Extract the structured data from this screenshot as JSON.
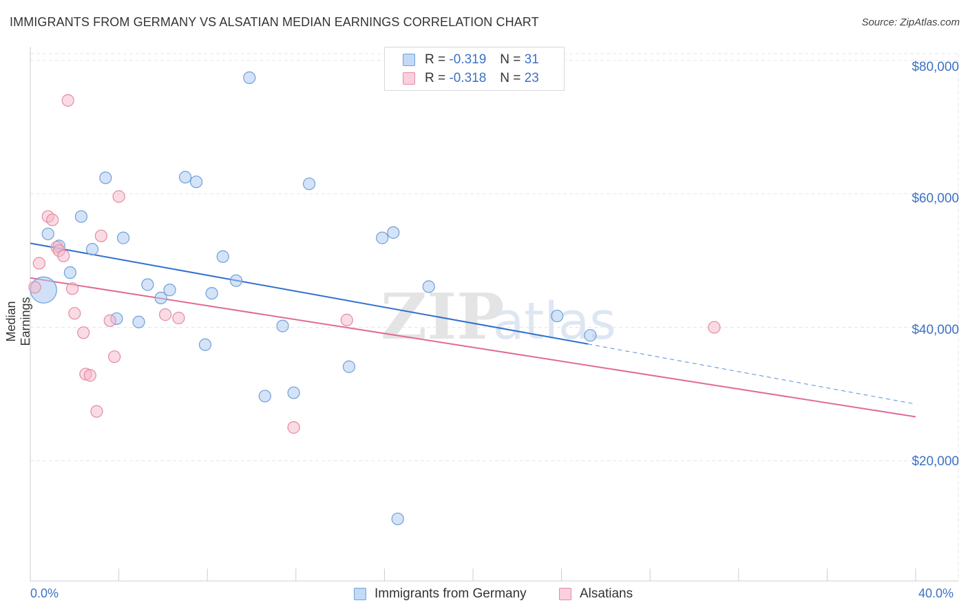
{
  "header": {
    "title": "IMMIGRANTS FROM GERMANY VS ALSATIAN MEDIAN EARNINGS CORRELATION CHART",
    "source": "Source: ZipAtlas.com"
  },
  "legend": {
    "rows": [
      {
        "r_label": "R = ",
        "r_value": "-0.319",
        "n_label": "N = ",
        "n_value": "31",
        "color": "#a9c8f0"
      },
      {
        "r_label": "R = ",
        "r_value": "-0.318",
        "n_label": "N = ",
        "n_value": "23",
        "color": "#f5b8c8"
      }
    ]
  },
  "watermark": {
    "zip": "ZIP",
    "atlas": "atlas"
  },
  "chart_data": {
    "type": "scatter",
    "title": "IMMIGRANTS FROM GERMANY VS ALSATIAN MEDIAN EARNINGS CORRELATION CHART",
    "xlabel": "",
    "ylabel": "Median Earnings",
    "xlim": [
      0,
      40
    ],
    "ylim": [
      2000,
      82000
    ],
    "x_tick_labels": [
      "0.0%",
      "40.0%"
    ],
    "y_ticks": [
      20000,
      40000,
      60000,
      80000
    ],
    "y_tick_labels": [
      "$20,000",
      "$40,000",
      "$60,000",
      "$80,000"
    ],
    "grid": true,
    "legend_position": "top-center",
    "series": [
      {
        "name": "Immigrants from Germany",
        "color": "#a9c8f0",
        "stroke": "#6f9fd8",
        "line_color": "#2f6fd0",
        "points": [
          [
            0.6,
            45.6,
            1
          ],
          [
            0.8,
            54.0,
            0
          ],
          [
            1.3,
            52.2,
            0
          ],
          [
            1.8,
            48.2,
            0
          ],
          [
            2.3,
            56.6,
            0
          ],
          [
            2.8,
            51.7,
            0
          ],
          [
            3.4,
            62.4,
            0
          ],
          [
            3.9,
            41.3,
            0
          ],
          [
            4.2,
            53.4,
            0
          ],
          [
            4.9,
            40.8,
            0
          ],
          [
            5.3,
            46.4,
            0
          ],
          [
            5.9,
            44.4,
            0
          ],
          [
            6.3,
            45.6,
            0
          ],
          [
            7.0,
            62.5,
            0
          ],
          [
            7.5,
            61.8,
            0
          ],
          [
            7.9,
            37.4,
            0
          ],
          [
            8.2,
            45.1,
            0
          ],
          [
            8.7,
            50.6,
            0
          ],
          [
            9.3,
            47.0,
            0
          ],
          [
            9.9,
            77.4,
            0
          ],
          [
            10.6,
            29.7,
            0
          ],
          [
            11.4,
            40.2,
            0
          ],
          [
            11.9,
            30.2,
            0
          ],
          [
            12.6,
            61.5,
            0
          ],
          [
            14.4,
            34.1,
            0
          ],
          [
            15.9,
            53.4,
            0
          ],
          [
            16.4,
            54.2,
            0
          ],
          [
            16.6,
            11.3,
            0
          ],
          [
            18.0,
            46.1,
            0
          ],
          [
            23.8,
            41.7,
            0
          ],
          [
            25.3,
            38.8,
            0
          ]
        ],
        "trend": {
          "x0": 0,
          "y0": 52.6,
          "x1": 25.2,
          "y1": 37.5,
          "dash_to_x": 40,
          "dash_to_y": 28.5
        }
      },
      {
        "name": "Alsatians",
        "color": "#f5b8c8",
        "stroke": "#e38aa4",
        "line_color": "#e06a94",
        "points": [
          [
            0.2,
            46.0,
            0
          ],
          [
            0.4,
            49.6,
            0
          ],
          [
            0.8,
            56.6,
            0
          ],
          [
            1.0,
            56.1,
            0
          ],
          [
            1.2,
            52.0,
            0
          ],
          [
            1.3,
            51.5,
            0
          ],
          [
            1.5,
            50.7,
            0
          ],
          [
            1.7,
            74.0,
            0
          ],
          [
            1.9,
            45.8,
            0
          ],
          [
            2.0,
            42.1,
            0
          ],
          [
            2.4,
            39.2,
            0
          ],
          [
            2.5,
            33.0,
            0
          ],
          [
            2.7,
            32.8,
            0
          ],
          [
            3.0,
            27.4,
            0
          ],
          [
            3.2,
            53.7,
            0
          ],
          [
            3.6,
            41.0,
            0
          ],
          [
            3.8,
            35.6,
            0
          ],
          [
            4.0,
            59.6,
            0
          ],
          [
            6.1,
            41.9,
            0
          ],
          [
            6.7,
            41.4,
            0
          ],
          [
            11.9,
            25.0,
            0
          ],
          [
            14.3,
            41.1,
            0
          ],
          [
            30.9,
            40.0,
            0
          ]
        ],
        "trend": {
          "x0": 0,
          "y0": 47.4,
          "x1": 40,
          "y1": 26.6
        }
      }
    ]
  },
  "bottom_legend": {
    "items": [
      {
        "label": "Immigrants from Germany",
        "color": "#a9c8f0"
      },
      {
        "label": "Alsatians",
        "color": "#f5b8c8"
      }
    ]
  }
}
